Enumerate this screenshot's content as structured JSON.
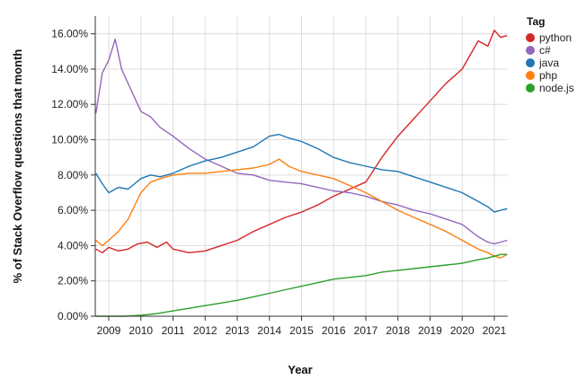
{
  "chart_data": {
    "type": "line",
    "xlabel": "Year",
    "ylabel": "% of Stack Overflow questions that month",
    "xlim": [
      2008.58,
      2021.42
    ],
    "ylim": [
      0,
      17
    ],
    "x_ticks": [
      2009,
      2010,
      2011,
      2012,
      2013,
      2014,
      2015,
      2016,
      2017,
      2018,
      2019,
      2020,
      2021
    ],
    "y_ticks": [
      {
        "value": 0,
        "label": "0.00%"
      },
      {
        "value": 2,
        "label": "2.00%"
      },
      {
        "value": 4,
        "label": "4.00%"
      },
      {
        "value": 6,
        "label": "6.00%"
      },
      {
        "value": 8,
        "label": "8.00%"
      },
      {
        "value": 10,
        "label": "10.00%"
      },
      {
        "value": 12,
        "label": "12.00%"
      },
      {
        "value": 14,
        "label": "14.00%"
      },
      {
        "value": 16,
        "label": "16.00%"
      }
    ],
    "grid": true,
    "legend": {
      "title": "Tag",
      "position": "right"
    },
    "series": [
      {
        "name": "python",
        "color": "#d62728",
        "x": [
          2008.6,
          2008.8,
          2009.0,
          2009.3,
          2009.6,
          2009.9,
          2010.2,
          2010.5,
          2010.8,
          2011.0,
          2011.5,
          2012.0,
          2012.5,
          2013.0,
          2013.5,
          2014.0,
          2014.5,
          2015.0,
          2015.5,
          2016.0,
          2016.5,
          2017.0,
          2017.5,
          2018.0,
          2018.5,
          2019.0,
          2019.5,
          2020.0,
          2020.5,
          2020.8,
          2021.0,
          2021.2,
          2021.4
        ],
        "y": [
          3.8,
          3.6,
          3.9,
          3.7,
          3.8,
          4.1,
          4.2,
          3.9,
          4.2,
          3.8,
          3.6,
          3.7,
          4.0,
          4.3,
          4.8,
          5.2,
          5.6,
          5.9,
          6.3,
          6.8,
          7.2,
          7.6,
          9.0,
          10.2,
          11.2,
          12.2,
          13.2,
          14.0,
          15.6,
          15.3,
          16.2,
          15.8,
          15.9
        ]
      },
      {
        "name": "c#",
        "color": "#9467bd",
        "x": [
          2008.6,
          2008.8,
          2009.0,
          2009.2,
          2009.4,
          2009.7,
          2010.0,
          2010.3,
          2010.6,
          2011.0,
          2011.5,
          2012.0,
          2012.5,
          2013.0,
          2013.5,
          2014.0,
          2014.5,
          2015.0,
          2015.5,
          2016.0,
          2016.5,
          2017.0,
          2017.5,
          2018.0,
          2018.5,
          2019.0,
          2019.5,
          2020.0,
          2020.5,
          2020.8,
          2021.0,
          2021.2,
          2021.4
        ],
        "y": [
          11.5,
          13.8,
          14.5,
          15.7,
          14.0,
          12.8,
          11.6,
          11.3,
          10.7,
          10.2,
          9.5,
          8.9,
          8.5,
          8.1,
          8.0,
          7.7,
          7.6,
          7.5,
          7.3,
          7.1,
          7.0,
          6.8,
          6.5,
          6.3,
          6.0,
          5.8,
          5.5,
          5.2,
          4.5,
          4.2,
          4.1,
          4.2,
          4.3
        ]
      },
      {
        "name": "java",
        "color": "#1f77b4",
        "x": [
          2008.6,
          2008.8,
          2009.0,
          2009.3,
          2009.6,
          2010.0,
          2010.3,
          2010.6,
          2011.0,
          2011.5,
          2012.0,
          2012.5,
          2013.0,
          2013.5,
          2014.0,
          2014.3,
          2014.6,
          2015.0,
          2015.5,
          2016.0,
          2016.5,
          2017.0,
          2017.5,
          2018.0,
          2018.5,
          2019.0,
          2019.5,
          2020.0,
          2020.5,
          2020.8,
          2021.0,
          2021.2,
          2021.4
        ],
        "y": [
          8.1,
          7.5,
          7.0,
          7.3,
          7.2,
          7.8,
          8.0,
          7.9,
          8.1,
          8.5,
          8.8,
          9.0,
          9.3,
          9.6,
          10.2,
          10.3,
          10.1,
          9.9,
          9.5,
          9.0,
          8.7,
          8.5,
          8.3,
          8.2,
          7.9,
          7.6,
          7.3,
          7.0,
          6.5,
          6.2,
          5.9,
          6.0,
          6.1
        ]
      },
      {
        "name": "php",
        "color": "#ff7f0e",
        "x": [
          2008.6,
          2008.8,
          2009.0,
          2009.3,
          2009.6,
          2010.0,
          2010.3,
          2010.6,
          2011.0,
          2011.5,
          2012.0,
          2012.5,
          2013.0,
          2013.5,
          2014.0,
          2014.3,
          2014.6,
          2015.0,
          2015.5,
          2016.0,
          2016.5,
          2017.0,
          2017.5,
          2018.0,
          2018.5,
          2019.0,
          2019.5,
          2020.0,
          2020.5,
          2020.8,
          2021.0,
          2021.2,
          2021.4
        ],
        "y": [
          4.3,
          4.0,
          4.3,
          4.8,
          5.5,
          7.0,
          7.6,
          7.8,
          8.0,
          8.1,
          8.1,
          8.2,
          8.3,
          8.4,
          8.6,
          8.9,
          8.5,
          8.2,
          8.0,
          7.8,
          7.4,
          7.0,
          6.5,
          6.0,
          5.6,
          5.2,
          4.8,
          4.3,
          3.8,
          3.6,
          3.4,
          3.3,
          3.5
        ]
      },
      {
        "name": "node.js",
        "color": "#2ca02c",
        "x": [
          2008.6,
          2009.0,
          2009.5,
          2010.0,
          2010.5,
          2011.0,
          2011.5,
          2012.0,
          2012.5,
          2013.0,
          2013.5,
          2014.0,
          2014.5,
          2015.0,
          2015.5,
          2016.0,
          2016.5,
          2017.0,
          2017.5,
          2018.0,
          2018.5,
          2019.0,
          2019.5,
          2020.0,
          2020.5,
          2020.8,
          2021.0,
          2021.2,
          2021.4
        ],
        "y": [
          0.0,
          0.0,
          0.0,
          0.05,
          0.15,
          0.3,
          0.45,
          0.6,
          0.75,
          0.9,
          1.1,
          1.3,
          1.5,
          1.7,
          1.9,
          2.1,
          2.2,
          2.3,
          2.5,
          2.6,
          2.7,
          2.8,
          2.9,
          3.0,
          3.2,
          3.3,
          3.4,
          3.5,
          3.5
        ]
      }
    ]
  }
}
